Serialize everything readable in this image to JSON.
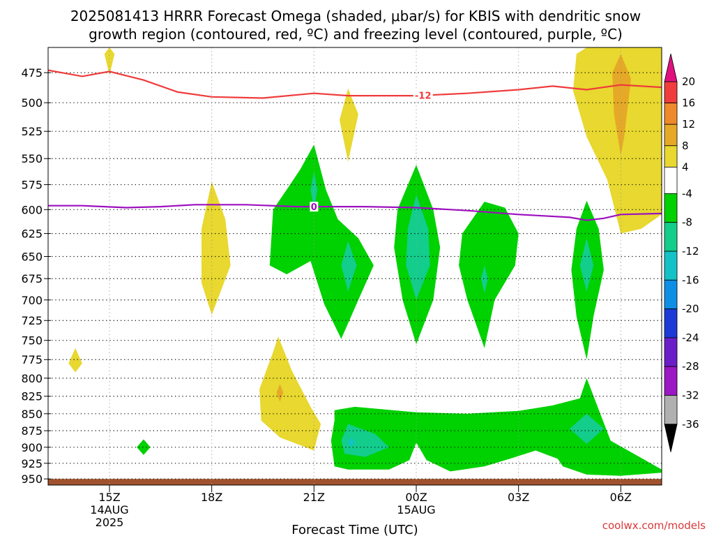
{
  "title_line1": "2025081413 HRRR Forecast Omega (shaded, μbar/s) for KBIS with dendritic snow",
  "title_line2": "growth region (contoured, red, ºC) and freezing level (contoured, purple, ºC)",
  "credit": "coolwx.com/models",
  "chart_data": {
    "type": "contour",
    "title": "2025081413 HRRR Forecast Omega (shaded, μbar/s) for KBIS with dendritic snow growth region (contoured, red, ºC) and freezing level (contoured, purple, ºC)",
    "xlabel": "Forecast Time (UTC)",
    "ylabel": "",
    "x_range_hours": [
      13.2,
      31.2
    ],
    "y_range_hPa": [
      960,
      455
    ],
    "x_ticks": [
      {
        "hour": 15,
        "label": "15Z",
        "sub1": "14AUG",
        "sub2": "2025"
      },
      {
        "hour": 18,
        "label": "18Z",
        "sub1": "",
        "sub2": ""
      },
      {
        "hour": 21,
        "label": "21Z",
        "sub1": "",
        "sub2": ""
      },
      {
        "hour": 24,
        "label": "00Z",
        "sub1": "15AUG",
        "sub2": ""
      },
      {
        "hour": 27,
        "label": "03Z",
        "sub1": "",
        "sub2": ""
      },
      {
        "hour": 30,
        "label": "06Z",
        "sub1": "",
        "sub2": ""
      }
    ],
    "y_ticks": [
      475,
      500,
      525,
      550,
      575,
      600,
      625,
      650,
      675,
      700,
      725,
      750,
      775,
      800,
      825,
      850,
      875,
      900,
      925,
      950
    ],
    "grid": true,
    "colorbar": {
      "labels": [
        "20",
        "16",
        "12",
        "8",
        "4",
        "-4",
        "-8",
        "-12",
        "-16",
        "-20",
        "-24",
        "-28",
        "-32",
        "-36"
      ],
      "bands": [
        {
          "lo": 16,
          "hi": 20,
          "color": "#f03c3c"
        },
        {
          "lo": 12,
          "hi": 16,
          "color": "#ee8a2a"
        },
        {
          "lo": 8,
          "hi": 12,
          "color": "#e6a927"
        },
        {
          "lo": 4,
          "hi": 8,
          "color": "#e8d82f"
        },
        {
          "lo": -4,
          "hi": 4,
          "color": "#ffffff"
        },
        {
          "lo": -8,
          "hi": -4,
          "color": "#00d100"
        },
        {
          "lo": -12,
          "hi": -8,
          "color": "#13cd8c"
        },
        {
          "lo": -16,
          "hi": -12,
          "color": "#13c2c7"
        },
        {
          "lo": -20,
          "hi": -16,
          "color": "#0d8fe6"
        },
        {
          "lo": -24,
          "hi": -20,
          "color": "#1c3ad6"
        },
        {
          "lo": -28,
          "hi": -24,
          "color": "#6a1ec8"
        },
        {
          "lo": -32,
          "hi": -28,
          "color": "#9b16c4"
        },
        {
          "lo": -36,
          "hi": -32,
          "color": "#b0b0b0"
        }
      ],
      "top_arrow_color": "#e0117f",
      "bottom_arrow_color": "#000000"
    },
    "dgz_minus12_line": {
      "color": "#ef3b3b",
      "label": "-12",
      "points": [
        [
          13.2,
          473
        ],
        [
          14.2,
          478
        ],
        [
          15.0,
          474
        ],
        [
          16.0,
          481
        ],
        [
          17.0,
          491
        ],
        [
          18.0,
          495
        ],
        [
          19.5,
          496
        ],
        [
          21.0,
          492
        ],
        [
          22.0,
          494
        ],
        [
          24.0,
          494
        ],
        [
          25.5,
          492
        ],
        [
          27.0,
          489
        ],
        [
          28.0,
          486
        ],
        [
          29.0,
          489
        ],
        [
          30.0,
          485
        ],
        [
          31.2,
          487
        ]
      ]
    },
    "freezing_level_line": {
      "color": "#9d0fc0",
      "label": "0",
      "points": [
        [
          13.2,
          596
        ],
        [
          14.2,
          596
        ],
        [
          15.5,
          598
        ],
        [
          16.5,
          597
        ],
        [
          17.5,
          595
        ],
        [
          19.0,
          595
        ],
        [
          20.5,
          597
        ],
        [
          21.0,
          597
        ],
        [
          22.5,
          597
        ],
        [
          24.0,
          598
        ],
        [
          25.5,
          601
        ],
        [
          27.0,
          605
        ],
        [
          28.5,
          608
        ],
        [
          29.0,
          611
        ],
        [
          29.5,
          609
        ],
        [
          30.0,
          605
        ],
        [
          31.2,
          604
        ]
      ]
    },
    "shaded_regions": [
      {
        "band": "4 to 8",
        "points": [
          [
            15.0,
            455
          ],
          [
            15.15,
            460
          ],
          [
            15.0,
            477
          ],
          [
            14.85,
            460
          ]
        ]
      },
      {
        "band": "4 to 8",
        "points": [
          [
            14.0,
            760
          ],
          [
            14.2,
            780
          ],
          [
            14.0,
            792
          ],
          [
            13.8,
            780
          ]
        ]
      },
      {
        "band": "4 to 8",
        "points": [
          [
            18.0,
            572
          ],
          [
            18.4,
            610
          ],
          [
            18.55,
            660
          ],
          [
            18.0,
            718
          ],
          [
            17.7,
            680
          ],
          [
            17.7,
            620
          ]
        ]
      },
      {
        "band": "4 to 8",
        "points": [
          [
            22.0,
            488
          ],
          [
            22.3,
            510
          ],
          [
            22.0,
            553
          ],
          [
            21.75,
            515
          ]
        ]
      },
      {
        "band": "4 to 8",
        "points": [
          [
            19.95,
            745
          ],
          [
            20.35,
            790
          ],
          [
            20.9,
            840
          ],
          [
            21.2,
            865
          ],
          [
            21.0,
            905
          ],
          [
            20.0,
            885
          ],
          [
            19.45,
            860
          ],
          [
            19.4,
            815
          ],
          [
            19.8,
            765
          ]
        ]
      },
      {
        "band": "4 to 8",
        "points": [
          [
            29.0,
            455
          ],
          [
            31.2,
            455
          ],
          [
            31.2,
            605
          ],
          [
            30.6,
            620
          ],
          [
            30.0,
            625
          ],
          [
            29.6,
            570
          ],
          [
            29.0,
            530
          ],
          [
            28.6,
            490
          ],
          [
            28.7,
            460
          ]
        ]
      },
      {
        "band": "8 to 12",
        "points": [
          [
            20.0,
            808
          ],
          [
            20.1,
            820
          ],
          [
            20.0,
            833
          ],
          [
            19.9,
            820
          ]
        ]
      },
      {
        "band": "8 to 12",
        "points": [
          [
            30.0,
            460
          ],
          [
            30.3,
            480
          ],
          [
            30.1,
            530
          ],
          [
            30.0,
            547
          ],
          [
            29.8,
            510
          ],
          [
            29.75,
            475
          ]
        ]
      },
      {
        "band": "-8 to -4",
        "points": [
          [
            21.0,
            537
          ],
          [
            21.35,
            580
          ],
          [
            21.7,
            610
          ],
          [
            22.3,
            630
          ],
          [
            22.75,
            660
          ],
          [
            22.3,
            700
          ],
          [
            21.8,
            748
          ],
          [
            21.3,
            705
          ],
          [
            20.9,
            655
          ],
          [
            20.2,
            670
          ],
          [
            19.7,
            660
          ],
          [
            19.8,
            600
          ],
          [
            20.2,
            580
          ],
          [
            20.6,
            560
          ]
        ]
      },
      {
        "band": "-8 to -4",
        "points": [
          [
            24.0,
            556
          ],
          [
            24.5,
            600
          ],
          [
            24.7,
            640
          ],
          [
            24.5,
            700
          ],
          [
            24.0,
            755
          ],
          [
            23.6,
            700
          ],
          [
            23.35,
            640
          ],
          [
            23.45,
            600
          ]
        ]
      },
      {
        "band": "-8 to -4",
        "points": [
          [
            26.0,
            592
          ],
          [
            26.6,
            598
          ],
          [
            27.0,
            625
          ],
          [
            26.9,
            660
          ],
          [
            26.3,
            700
          ],
          [
            26.0,
            760
          ],
          [
            25.5,
            700
          ],
          [
            25.25,
            660
          ],
          [
            25.35,
            625
          ]
        ]
      },
      {
        "band": "-8 to -4",
        "points": [
          [
            29.0,
            591
          ],
          [
            29.35,
            620
          ],
          [
            29.5,
            665
          ],
          [
            29.2,
            720
          ],
          [
            29.0,
            775
          ],
          [
            28.7,
            720
          ],
          [
            28.55,
            665
          ],
          [
            28.7,
            620
          ]
        ]
      },
      {
        "band": "-8 to -4",
        "points": [
          [
            21.6,
            845
          ],
          [
            22.2,
            840
          ],
          [
            24.0,
            848
          ],
          [
            25.5,
            850
          ],
          [
            27.0,
            846
          ],
          [
            28.0,
            838
          ],
          [
            28.8,
            828
          ],
          [
            29.0,
            800
          ],
          [
            29.7,
            890
          ],
          [
            31.2,
            935
          ],
          [
            31.2,
            940
          ],
          [
            30.0,
            945
          ],
          [
            29.0,
            943
          ],
          [
            28.3,
            930
          ],
          [
            28.15,
            918
          ],
          [
            27.5,
            905
          ],
          [
            26.8,
            917
          ],
          [
            26.0,
            930
          ],
          [
            25.0,
            938
          ],
          [
            24.3,
            920
          ],
          [
            24.0,
            893
          ],
          [
            23.8,
            920
          ],
          [
            23.2,
            935
          ],
          [
            22.0,
            935
          ],
          [
            21.6,
            930
          ],
          [
            21.5,
            890
          ],
          [
            21.6,
            860
          ]
        ]
      },
      {
        "band": "-8 to -4",
        "points": [
          [
            16.0,
            888
          ],
          [
            16.2,
            900
          ],
          [
            16.0,
            912
          ],
          [
            15.8,
            900
          ]
        ]
      },
      {
        "band": "-12 to -8",
        "points": [
          [
            21.0,
            562
          ],
          [
            21.1,
            580
          ],
          [
            21.0,
            600
          ],
          [
            20.9,
            580
          ]
        ]
      },
      {
        "band": "-12 to -8",
        "points": [
          [
            22.0,
            633
          ],
          [
            22.25,
            660
          ],
          [
            22.0,
            690
          ],
          [
            21.8,
            660
          ]
        ]
      },
      {
        "band": "-12 to -8",
        "points": [
          [
            24.0,
            585
          ],
          [
            24.35,
            620
          ],
          [
            24.4,
            660
          ],
          [
            24.0,
            700
          ],
          [
            23.7,
            660
          ],
          [
            23.75,
            620
          ]
        ]
      },
      {
        "band": "-12 to -8",
        "points": [
          [
            26.0,
            660
          ],
          [
            26.1,
            675
          ],
          [
            26.0,
            692
          ],
          [
            25.9,
            675
          ]
        ]
      },
      {
        "band": "-12 to -8",
        "points": [
          [
            29.0,
            630
          ],
          [
            29.2,
            660
          ],
          [
            29.0,
            690
          ],
          [
            28.8,
            660
          ]
        ]
      },
      {
        "band": "-12 to -8",
        "points": [
          [
            22.0,
            865
          ],
          [
            22.8,
            880
          ],
          [
            23.2,
            900
          ],
          [
            22.5,
            915
          ],
          [
            21.9,
            910
          ],
          [
            21.8,
            890
          ]
        ]
      },
      {
        "band": "-12 to -8",
        "points": [
          [
            29.0,
            850
          ],
          [
            29.5,
            872
          ],
          [
            29.0,
            895
          ],
          [
            28.5,
            872
          ]
        ]
      },
      {
        "band": "-16 to -12",
        "points": [
          [
            22.1,
            885
          ],
          [
            22.2,
            893
          ],
          [
            22.1,
            899
          ],
          [
            22.0,
            893
          ]
        ]
      }
    ],
    "surface_band": {
      "color": "#a0522d",
      "from_hPa": 950,
      "to_hPa": 960
    }
  }
}
